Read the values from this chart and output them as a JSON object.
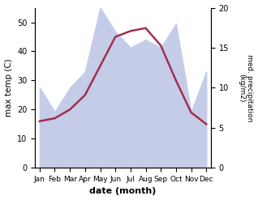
{
  "months": [
    "Jan",
    "Feb",
    "Mar",
    "Apr",
    "May",
    "Jun",
    "Jul",
    "Aug",
    "Sep",
    "Oct",
    "Nov",
    "Dec"
  ],
  "temperature": [
    16,
    17,
    20,
    25,
    35,
    45,
    47,
    48,
    42,
    30,
    19,
    15
  ],
  "precipitation": [
    10,
    7,
    10,
    12,
    20,
    17,
    15,
    16,
    15,
    18,
    7,
    12
  ],
  "temp_color": "#a03050",
  "precip_fill_color": "#c5cce8",
  "xlabel": "date (month)",
  "ylabel_left": "max temp (C)",
  "ylabel_right": "med. precipitation\n(kg/m2)",
  "ylim_left": [
    0,
    55
  ],
  "ylim_right": [
    0,
    20
  ],
  "yticks_left": [
    0,
    10,
    20,
    30,
    40,
    50
  ],
  "yticks_right": [
    0,
    5,
    10,
    15,
    20
  ],
  "background_color": "#ffffff"
}
